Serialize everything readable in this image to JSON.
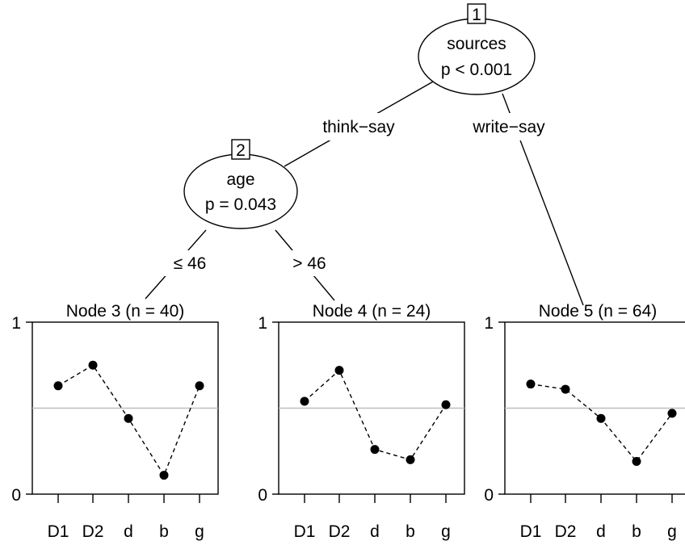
{
  "tree": {
    "inner_nodes": [
      {
        "id": "1",
        "variable": "sources",
        "pvalue": "p < 0.001"
      },
      {
        "id": "2",
        "variable": "age",
        "pvalue": "p = 0.043"
      }
    ],
    "edges": [
      {
        "from": "1",
        "to": "2",
        "label": "think−say"
      },
      {
        "from": "1",
        "to": "5",
        "label": "write−say"
      },
      {
        "from": "2",
        "to": "3",
        "label": "≤ 46"
      },
      {
        "from": "2",
        "to": "4",
        "label": "> 46"
      }
    ]
  },
  "chart_data": {
    "type": "line",
    "categories": [
      "D1",
      "D2",
      "d",
      "b",
      "g"
    ],
    "ylim": [
      0,
      1
    ],
    "ytick_labels": [
      "0",
      "1"
    ],
    "reference_line": 0.5,
    "panels": [
      {
        "title": "Node 3 (n = 40)",
        "values": [
          0.63,
          0.75,
          0.44,
          0.11,
          0.63
        ]
      },
      {
        "title": "Node 4 (n = 24)",
        "values": [
          0.54,
          0.72,
          0.26,
          0.2,
          0.52
        ]
      },
      {
        "title": "Node 5 (n = 64)",
        "values": [
          0.64,
          0.61,
          0.44,
          0.19,
          0.47
        ]
      }
    ]
  },
  "colors": {
    "reference_line": "#bebebe",
    "ink": "#000000"
  }
}
